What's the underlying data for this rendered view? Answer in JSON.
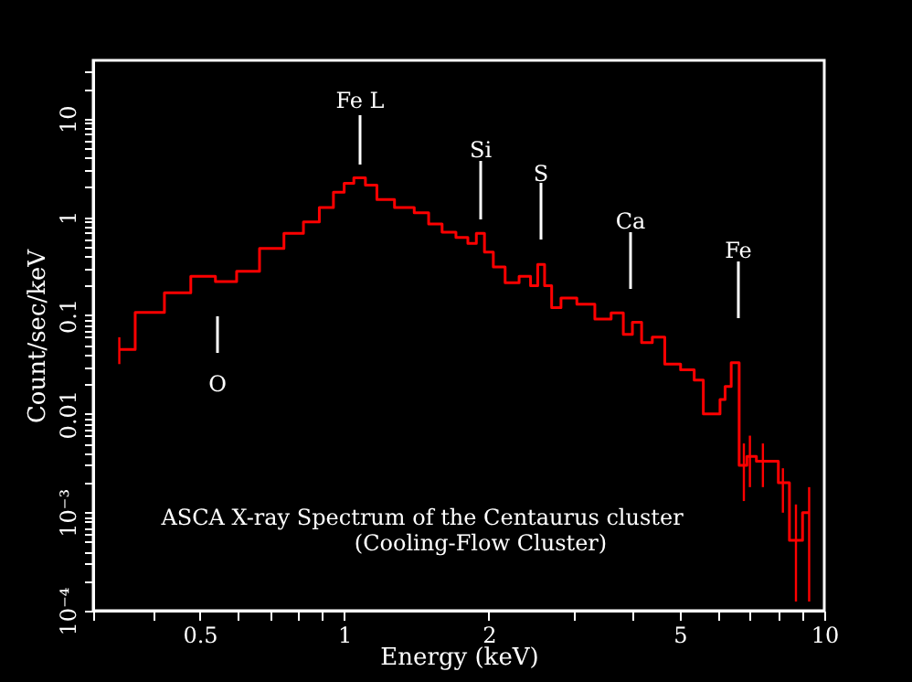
{
  "chart_data": {
    "type": "step",
    "title": "ASCA X-ray Spectrum of the Centaurus cluster",
    "subtitle": "(Cooling-Flow Cluster)",
    "xlabel": "Energy (keV)",
    "ylabel": "Count/sec/keV",
    "log": "xy",
    "grid": false,
    "marker": "none",
    "line_style": "solid",
    "xlim": [
      0.3,
      10
    ],
    "ylim": [
      0.0001,
      39
    ],
    "xticks": [
      {
        "value": 0.3,
        "label": null
      },
      {
        "value": 0.4,
        "label": null
      },
      0.5,
      {
        "value": 0.6,
        "label": null
      },
      {
        "value": 0.7,
        "label": null
      },
      {
        "value": 0.8,
        "label": null
      },
      {
        "value": 0.9,
        "label": null
      },
      1,
      2,
      {
        "value": 3,
        "label": null
      },
      {
        "value": 4,
        "label": null
      },
      5,
      {
        "value": 6,
        "label": null
      },
      {
        "value": 7,
        "label": null
      },
      {
        "value": 8,
        "label": null
      },
      {
        "value": 9,
        "label": null
      },
      10
    ],
    "yticks": [
      {
        "value": 0.0001,
        "label": "10⁻⁴"
      },
      {
        "value": 0.0002,
        "label": null
      },
      {
        "value": 0.0003,
        "label": null
      },
      {
        "value": 0.0004,
        "label": null
      },
      {
        "value": 0.0005,
        "label": null
      },
      {
        "value": 0.0006,
        "label": null
      },
      {
        "value": 0.0007,
        "label": null
      },
      {
        "value": 0.0008,
        "label": null
      },
      {
        "value": 0.0009,
        "label": null
      },
      {
        "value": 0.001,
        "label": "10⁻³"
      },
      {
        "value": 0.002,
        "label": null
      },
      {
        "value": 0.003,
        "label": null
      },
      {
        "value": 0.004,
        "label": null
      },
      {
        "value": 0.005,
        "label": null
      },
      {
        "value": 0.006,
        "label": null
      },
      {
        "value": 0.007,
        "label": null
      },
      {
        "value": 0.008,
        "label": null
      },
      {
        "value": 0.009,
        "label": null
      },
      0.01,
      {
        "value": 0.02,
        "label": null
      },
      {
        "value": 0.03,
        "label": null
      },
      {
        "value": 0.04,
        "label": null
      },
      {
        "value": 0.05,
        "label": null
      },
      {
        "value": 0.06,
        "label": null
      },
      {
        "value": 0.07,
        "label": null
      },
      {
        "value": 0.08,
        "label": null
      },
      {
        "value": 0.09,
        "label": null
      },
      0.1,
      {
        "value": 0.2,
        "label": null
      },
      {
        "value": 0.3,
        "label": null
      },
      {
        "value": 0.4,
        "label": null
      },
      {
        "value": 0.5,
        "label": null
      },
      {
        "value": 0.6,
        "label": null
      },
      {
        "value": 0.7,
        "label": null
      },
      {
        "value": 0.8,
        "label": null
      },
      {
        "value": 0.9,
        "label": null
      },
      1,
      {
        "value": 2,
        "label": null
      },
      {
        "value": 3,
        "label": null
      },
      {
        "value": 4,
        "label": null
      },
      {
        "value": 5,
        "label": null
      },
      {
        "value": 6,
        "label": null
      },
      {
        "value": 7,
        "label": null
      },
      {
        "value": 8,
        "label": null
      },
      {
        "value": 9,
        "label": null
      },
      10,
      {
        "value": 20,
        "label": null
      },
      {
        "value": 30,
        "label": null
      }
    ],
    "series": [
      {
        "color": "#ff0000",
        "x": [
          0.34,
          0.396,
          0.45,
          0.51,
          0.57,
          0.625,
          0.71,
          0.79,
          0.856,
          0.92,
          0.98,
          1.02,
          1.075,
          1.14,
          1.2,
          1.35,
          1.45,
          1.55,
          1.65,
          1.77,
          1.85,
          1.92,
          2.0,
          2.09,
          2.24,
          2.39,
          2.5,
          2.56,
          2.67,
          2.74,
          2.92,
          3.19,
          3.47,
          3.73,
          3.9,
          4.07,
          4.26,
          4.51,
          4.8,
          5.25,
          5.47,
          5.73,
          6.0,
          6.13,
          6.3,
          6.5,
          6.8,
          7.0,
          7.45,
          7.85,
          8.2,
          8.73,
          9.3
        ],
        "values": [
          0.045,
          0.107,
          0.17,
          0.25,
          0.22,
          0.28,
          0.48,
          0.68,
          0.89,
          1.25,
          1.78,
          2.2,
          2.5,
          2.1,
          1.5,
          1.25,
          1.1,
          0.85,
          0.7,
          0.62,
          0.54,
          0.68,
          0.44,
          0.31,
          0.215,
          0.25,
          0.2,
          0.33,
          0.2,
          0.12,
          0.15,
          0.13,
          0.092,
          0.106,
          0.064,
          0.085,
          0.053,
          0.06,
          0.032,
          0.028,
          0.022,
          0.01,
          0.01,
          0.014,
          0.019,
          0.033,
          0.003,
          0.0037,
          0.0033,
          0.0033,
          0.002,
          0.00052,
          0.00099
        ],
        "errors": [
          [
            0.032,
            0.06
          ],
          null,
          null,
          null,
          null,
          null,
          null,
          null,
          null,
          null,
          null,
          null,
          null,
          null,
          null,
          null,
          null,
          null,
          null,
          null,
          null,
          null,
          null,
          null,
          null,
          null,
          null,
          null,
          null,
          null,
          null,
          null,
          null,
          null,
          null,
          null,
          null,
          null,
          null,
          null,
          null,
          null,
          null,
          null,
          null,
          null,
          [
            0.0013,
            0.005
          ],
          [
            0.0018,
            0.006
          ],
          [
            0.0018,
            0.005
          ],
          null,
          [
            0.00099,
            0.0028
          ],
          [
            0.000124,
            0.0012
          ],
          [
            0.000124,
            0.0018
          ]
        ]
      }
    ],
    "annotations": [
      "O",
      "Fe L",
      "Si",
      "S",
      "Ca",
      "Fe"
    ]
  }
}
